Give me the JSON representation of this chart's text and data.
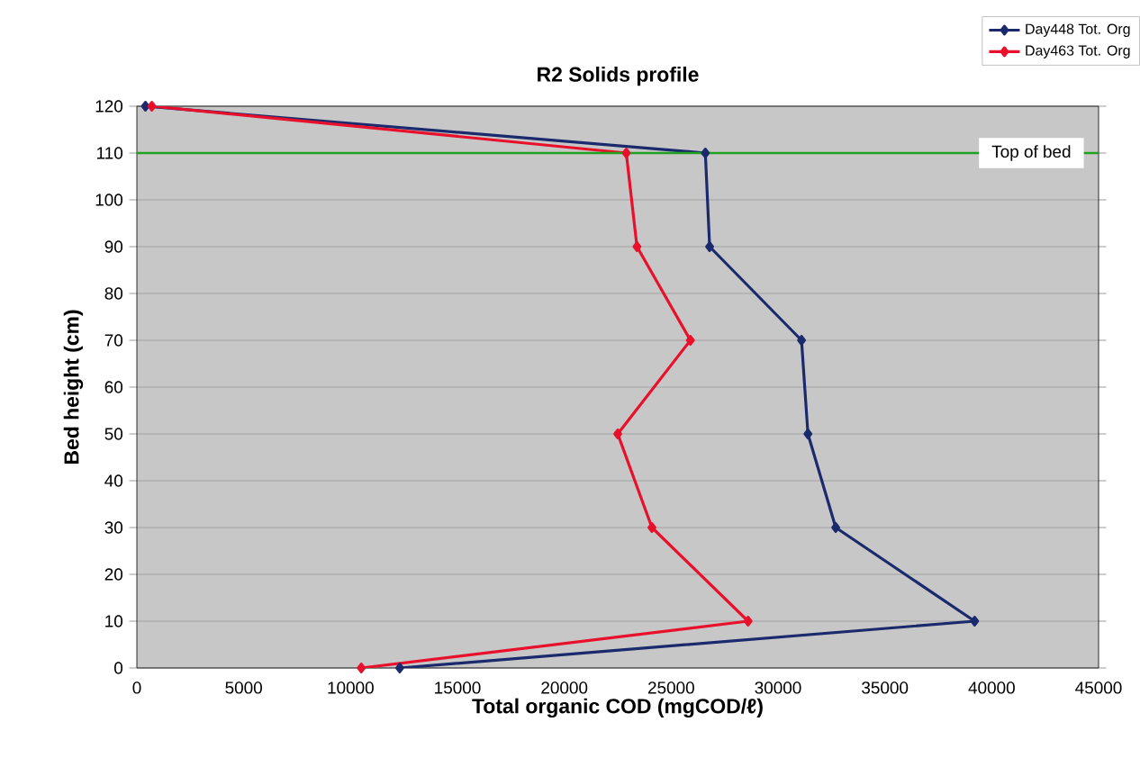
{
  "chart_data": {
    "type": "line",
    "title": "R2 Solids profile",
    "xlabel": "Total organic COD (mgCOD/ℓ)",
    "ylabel": "Bed height (cm)",
    "series": [
      {
        "name": "Day448 Tot. Org",
        "color": "#1a2a6c",
        "x": [
          400,
          26600,
          26800,
          31100,
          31400,
          32700,
          39200,
          12300
        ],
        "values": [
          120,
          110,
          90,
          70,
          50,
          30,
          10,
          0
        ]
      },
      {
        "name": "Day463 Tot. Org",
        "color": "#e8102a",
        "x": [
          700,
          22900,
          23400,
          25900,
          22500,
          24100,
          28600,
          10500
        ],
        "values": [
          120,
          110,
          90,
          70,
          50,
          30,
          10,
          0
        ]
      }
    ],
    "xlim": [
      0,
      45000
    ],
    "xticks": [
      0,
      5000,
      10000,
      15000,
      20000,
      25000,
      30000,
      35000,
      40000,
      45000
    ],
    "ylim": [
      0,
      120
    ],
    "yticks": [
      0,
      10,
      20,
      30,
      40,
      50,
      60,
      70,
      80,
      90,
      100,
      110,
      120
    ],
    "ref_lines": [
      {
        "axis": "y",
        "value": 110,
        "label": "Top of bed",
        "color": "#22a022"
      }
    ],
    "grid": "y",
    "legend": "top right",
    "marker": "diamond",
    "line_style": "solid"
  }
}
